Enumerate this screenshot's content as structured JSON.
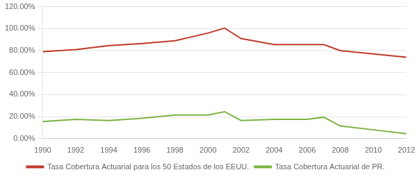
{
  "chart_data": {
    "type": "line",
    "x": [
      1990,
      1992,
      1994,
      1996,
      1998,
      2000,
      2001,
      2002,
      2004,
      2006,
      2007,
      2008,
      2010,
      2012
    ],
    "series": [
      {
        "name": "Tasa Cobertura Actuarial para los 50 Estados de los EEUU.",
        "color": "#c0392b",
        "values": [
          0.79,
          0.81,
          0.845,
          0.865,
          0.89,
          0.96,
          1.005,
          0.91,
          0.855,
          0.855,
          0.855,
          0.8,
          0.77,
          0.74
        ]
      },
      {
        "name": "Tasa Cobertura Actuarial de PR.",
        "color": "#7cb342",
        "values": [
          0.155,
          0.175,
          0.165,
          0.185,
          0.215,
          0.215,
          0.245,
          0.165,
          0.175,
          0.175,
          0.195,
          0.115,
          0.08,
          0.045
        ]
      }
    ],
    "xlim": [
      1990,
      2012
    ],
    "xticks": [
      1990,
      1992,
      1994,
      1996,
      1998,
      2000,
      2002,
      2004,
      2006,
      2008,
      2010,
      2012
    ],
    "ylim": [
      0.0,
      1.2
    ],
    "yticks": [
      {
        "value": 0.0,
        "label": "0.00%"
      },
      {
        "value": 0.2,
        "label": "20.00%"
      },
      {
        "value": 0.4,
        "label": "40.00%"
      },
      {
        "value": 0.6,
        "label": "60.00%"
      },
      {
        "value": 0.8,
        "label": "80.00%"
      },
      {
        "value": 1.0,
        "label": "100.00%"
      },
      {
        "value": 1.2,
        "label": "120.00%"
      }
    ],
    "grid": "y",
    "legend": "bottom"
  }
}
